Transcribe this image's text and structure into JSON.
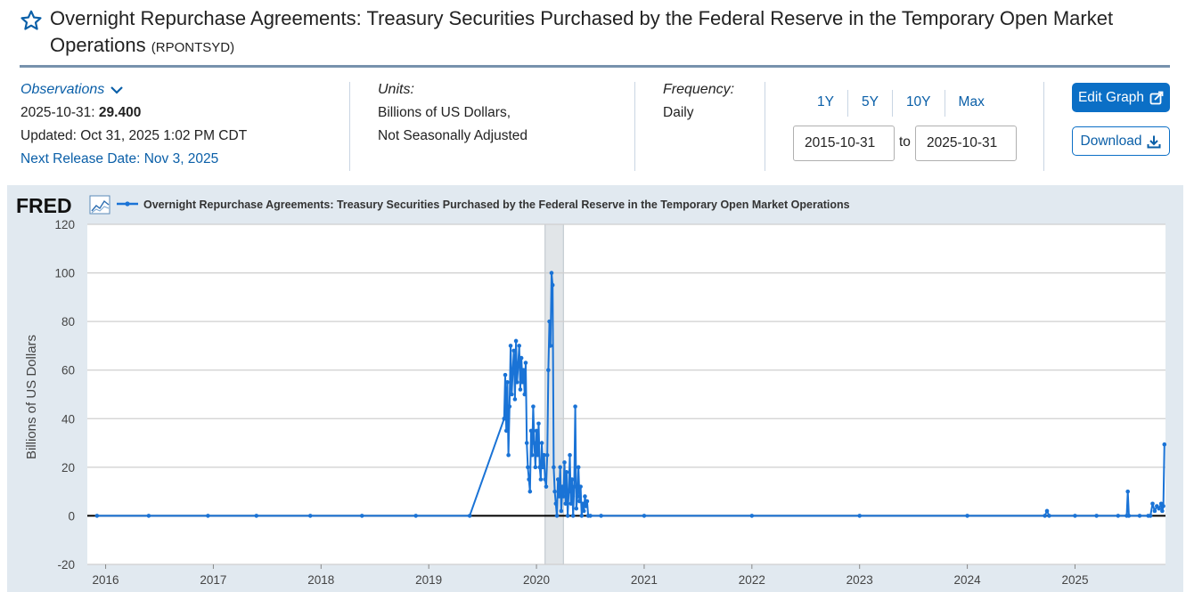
{
  "header": {
    "title": "Overnight Repurchase Agreements: Treasury Securities Purchased by the Federal Reserve in the Temporary Open Market Operations",
    "series_id": "(RPONTSYD)"
  },
  "observations": {
    "label": "Observations",
    "date": "2025-10-31:",
    "value": "29.400",
    "updated": "Updated: Oct 31, 2025 1:02 PM CDT",
    "next_release": "Next Release Date: Nov 3, 2025"
  },
  "units": {
    "label": "Units:",
    "line1": "Billions of US Dollars,",
    "line2": "Not Seasonally Adjusted"
  },
  "frequency": {
    "label": "Frequency:",
    "value": "Daily"
  },
  "range": {
    "buttons": [
      "1Y",
      "5Y",
      "10Y",
      "Max"
    ],
    "start": "2015-10-31",
    "to": "to",
    "end": "2025-10-31"
  },
  "actions": {
    "edit": "Edit Graph",
    "download": "Download"
  },
  "colors": {
    "accent": "#0b6fc6",
    "series": "#1a73d6",
    "plot_bg": "#ffffff",
    "frame_bg": "#e1e9f0",
    "recession": "#e1e5e8"
  },
  "chart_data": {
    "type": "line",
    "logo": "FRED",
    "title": "Overnight Repurchase Agreements: Treasury Securities Purchased by the Federal Reserve in the Temporary Open Market Operations",
    "xlabel": "",
    "ylabel": "Billions of US Dollars",
    "ylim": [
      -20,
      120
    ],
    "xlim": [
      2015.83,
      2025.84
    ],
    "yticks": [
      -20,
      0,
      20,
      40,
      60,
      80,
      100,
      120
    ],
    "xticks": [
      2016,
      2017,
      2018,
      2019,
      2020,
      2021,
      2022,
      2023,
      2024,
      2025
    ],
    "grid": true,
    "legend": "top-left",
    "recession": [
      2020.08,
      2020.25
    ],
    "series": [
      {
        "name": "RPONTSYD",
        "x": [
          2015.92,
          2016.4,
          2016.95,
          2017.4,
          2017.9,
          2018.38,
          2018.88,
          2019.38,
          2019.7,
          2019.71,
          2019.72,
          2019.73,
          2019.74,
          2019.75,
          2019.76,
          2019.77,
          2019.78,
          2019.79,
          2019.8,
          2019.81,
          2019.82,
          2019.83,
          2019.84,
          2019.85,
          2019.86,
          2019.87,
          2019.88,
          2019.89,
          2019.9,
          2019.91,
          2019.92,
          2019.93,
          2019.94,
          2019.95,
          2019.96,
          2019.97,
          2019.98,
          2019.99,
          2020.0,
          2020.01,
          2020.02,
          2020.03,
          2020.04,
          2020.05,
          2020.06,
          2020.07,
          2020.08,
          2020.09,
          2020.1,
          2020.11,
          2020.12,
          2020.13,
          2020.14,
          2020.15,
          2020.16,
          2020.17,
          2020.18,
          2020.19,
          2020.2,
          2020.21,
          2020.22,
          2020.23,
          2020.24,
          2020.25,
          2020.26,
          2020.27,
          2020.28,
          2020.29,
          2020.3,
          2020.31,
          2020.32,
          2020.33,
          2020.34,
          2020.35,
          2020.36,
          2020.37,
          2020.38,
          2020.39,
          2020.4,
          2020.41,
          2020.42,
          2020.43,
          2020.44,
          2020.45,
          2020.46,
          2020.47,
          2020.48,
          2020.5,
          2020.6,
          2021.0,
          2022.0,
          2023.0,
          2024.0,
          2024.72,
          2024.74,
          2024.76,
          2025.0,
          2025.2,
          2025.4,
          2025.48,
          2025.49,
          2025.5,
          2025.6,
          2025.68,
          2025.7,
          2025.72,
          2025.74,
          2025.76,
          2025.78,
          2025.8,
          2025.81,
          2025.82,
          2025.83
        ],
        "values": [
          0,
          0,
          0,
          0,
          0,
          0,
          0,
          0,
          40,
          58,
          35,
          55,
          25,
          45,
          70,
          50,
          60,
          68,
          48,
          72,
          55,
          62,
          70,
          52,
          65,
          55,
          60,
          50,
          63,
          30,
          20,
          15,
          10,
          35,
          25,
          45,
          30,
          20,
          35,
          25,
          38,
          20,
          15,
          30,
          20,
          25,
          15,
          12,
          25,
          60,
          80,
          70,
          100,
          95,
          20,
          10,
          5,
          0,
          15,
          8,
          20,
          2,
          12,
          8,
          22,
          5,
          18,
          0,
          10,
          25,
          5,
          15,
          0,
          12,
          45,
          3,
          8,
          20,
          6,
          12,
          0,
          5,
          2,
          8,
          4,
          6,
          0,
          0,
          0,
          0,
          0,
          0,
          0,
          0,
          2,
          0,
          0,
          0,
          0,
          0,
          10,
          0,
          0,
          0,
          0,
          5,
          2,
          4,
          3,
          5,
          2,
          4,
          29.4
        ]
      }
    ]
  }
}
